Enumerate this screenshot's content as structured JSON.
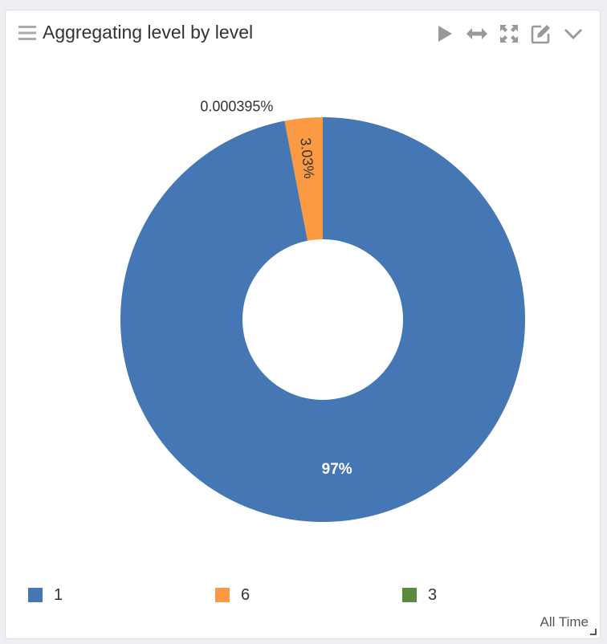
{
  "panel": {
    "title": "Aggregating level by level",
    "time_range": "All Time"
  },
  "toolbar": {
    "icons": [
      "play-icon",
      "horizontal-arrows-icon",
      "expand-icon",
      "edit-icon",
      "chevron-down-icon"
    ]
  },
  "colors": {
    "series_1": "#4477b3",
    "series_6": "#fb9a42",
    "series_3": "#5a8a3c",
    "icon": "#999999"
  },
  "chart_data": {
    "type": "pie",
    "donut": true,
    "categories": [
      "1",
      "6",
      "3"
    ],
    "values": [
      96.97,
      3.03,
      0.000395
    ],
    "labels": [
      "97%",
      "3.03%",
      "0.000395%"
    ],
    "colors": [
      "#4477b3",
      "#fb9a42",
      "#5a8a3c"
    ],
    "legend_position": "bottom"
  }
}
